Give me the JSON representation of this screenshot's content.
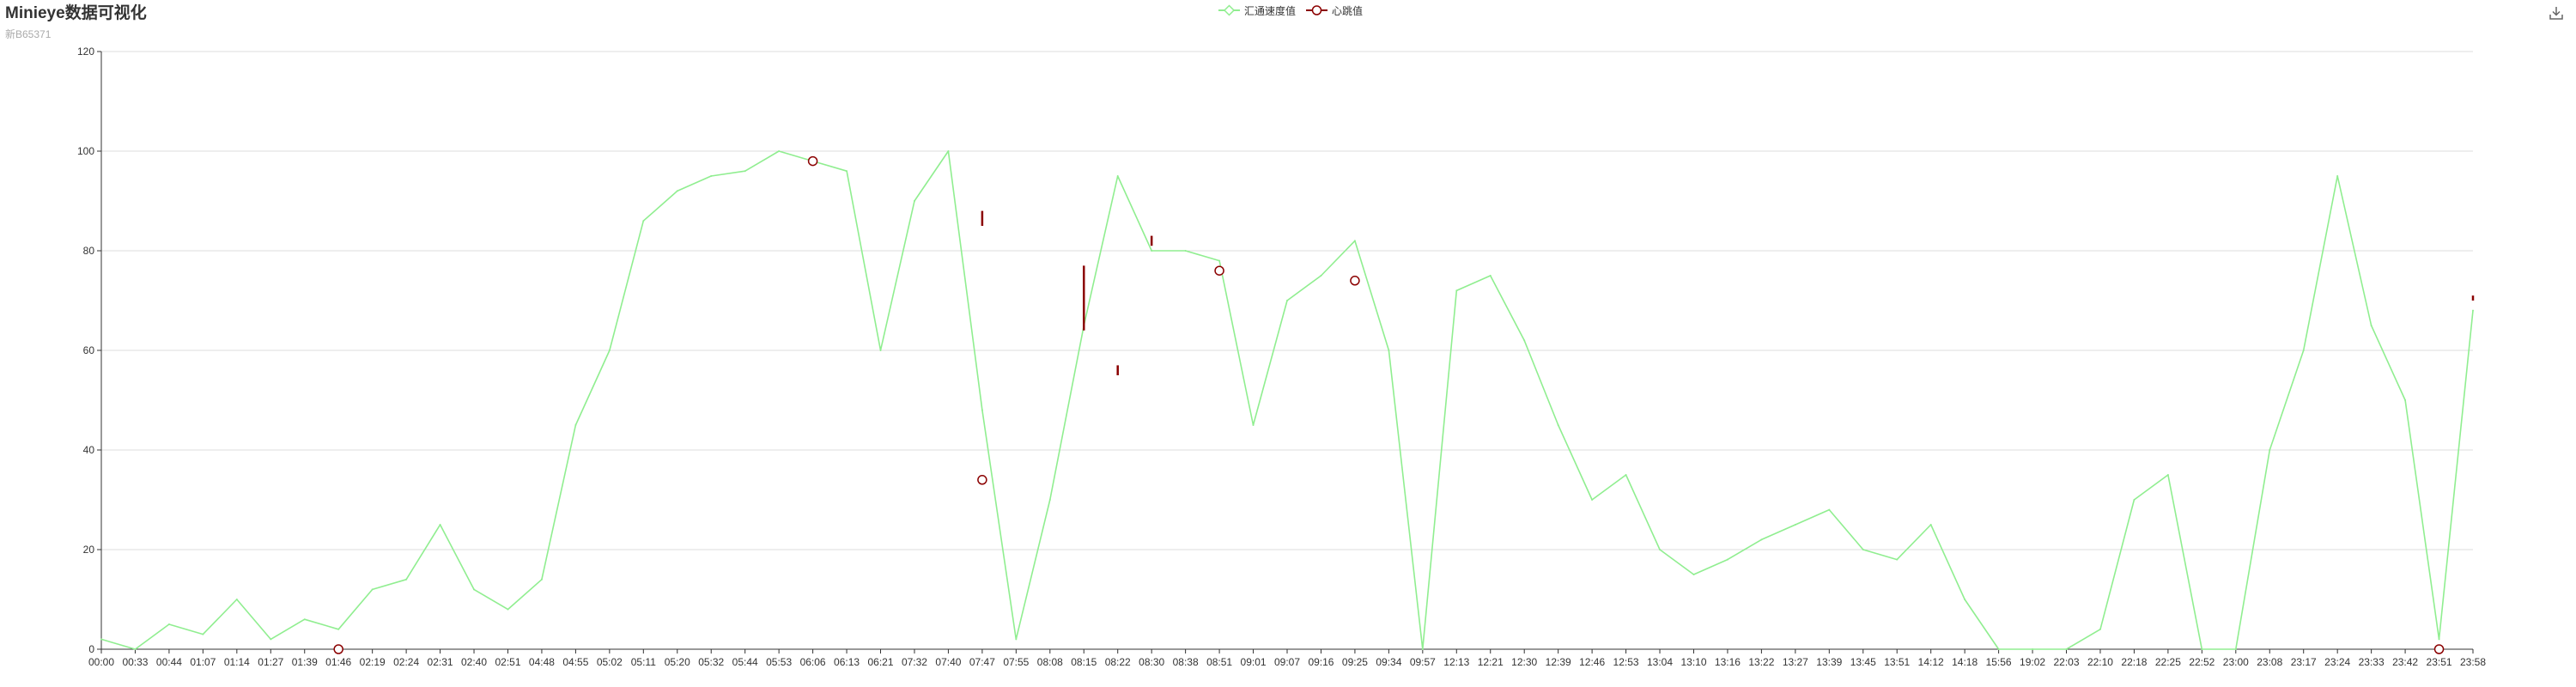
{
  "header": {
    "title": "Minieye数据可视化",
    "subtitle": "新B65371"
  },
  "colors": {
    "speed": "#90ee90",
    "heartbeat": "#8b0000",
    "grid": "#dddddd",
    "axis": "#333333"
  },
  "toolbox": {
    "icon": "download-icon"
  },
  "chart_data": {
    "type": "line",
    "title": "Minieye数据可视化",
    "subtitle": "新B65371",
    "legend": [
      {
        "name": "汇通速度值",
        "symbol": "diamond",
        "color": "#90ee90"
      },
      {
        "name": "心跳值",
        "symbol": "circle",
        "color": "#8b0000"
      }
    ],
    "legend_position": "top-center",
    "grid": true,
    "ylim": [
      0,
      120
    ],
    "yticks": [
      0,
      20,
      40,
      60,
      80,
      100,
      120
    ],
    "x_range": [
      "00:00",
      "23:59"
    ],
    "xticks": [
      "00:00",
      "00:33",
      "00:44",
      "01:07",
      "01:14",
      "01:27",
      "01:39",
      "01:46",
      "02:19",
      "02:24",
      "02:31",
      "02:40",
      "02:51",
      "04:48",
      "04:55",
      "05:02",
      "05:11",
      "05:20",
      "05:32",
      "05:44",
      "05:53",
      "06:06",
      "06:13",
      "06:21",
      "07:32",
      "07:40",
      "07:47",
      "07:55",
      "08:08",
      "08:15",
      "08:22",
      "08:30",
      "08:38",
      "08:51",
      "09:01",
      "09:07",
      "09:16",
      "09:25",
      "09:34",
      "09:57",
      "12:13",
      "12:21",
      "12:30",
      "12:39",
      "12:46",
      "12:53",
      "13:04",
      "13:10",
      "13:16",
      "13:22",
      "13:27",
      "13:39",
      "13:45",
      "13:51",
      "14:12",
      "14:18",
      "15:56",
      "19:02",
      "22:03",
      "22:10",
      "22:18",
      "22:25",
      "22:52",
      "23:00",
      "23:08",
      "23:17",
      "23:24",
      "23:33",
      "23:42",
      "23:51",
      "23:58"
    ],
    "series": [
      {
        "name": "汇通速度值",
        "x_index": [
          0,
          1,
          2,
          3,
          4,
          5,
          6,
          7,
          8,
          9,
          10,
          11,
          12,
          13,
          14,
          15,
          16,
          17,
          18,
          19,
          20,
          21,
          22,
          23,
          24,
          25,
          26,
          27,
          28,
          29,
          30,
          31,
          32,
          33,
          34,
          35,
          36,
          37,
          38,
          39,
          40,
          41,
          42,
          43,
          44,
          45,
          46,
          47,
          48,
          49,
          50,
          51,
          52,
          53,
          54,
          55,
          56,
          57,
          58,
          59,
          60,
          61,
          62,
          63,
          64,
          65,
          66,
          67,
          68,
          69,
          70
        ],
        "values": [
          2,
          0,
          5,
          3,
          10,
          2,
          6,
          4,
          12,
          14,
          25,
          12,
          8,
          14,
          45,
          60,
          86,
          92,
          95,
          96,
          100,
          98,
          96,
          60,
          90,
          100,
          48,
          2,
          30,
          65,
          95,
          80,
          80,
          78,
          45,
          70,
          75,
          82,
          60,
          0,
          72,
          75,
          62,
          45,
          30,
          35,
          20,
          15,
          18,
          22,
          25,
          28,
          20,
          18,
          25,
          10,
          0,
          0,
          0,
          4,
          30,
          35,
          0,
          0,
          40,
          60,
          95,
          65,
          50,
          2,
          68
        ]
      },
      {
        "name": "心跳值",
        "x_index": [
          7,
          21,
          26,
          33,
          37,
          69
        ],
        "values": [
          0,
          98,
          34,
          76,
          74,
          0
        ]
      }
    ],
    "heartbeat_marks": [
      {
        "x_index": 26,
        "values": [
          88,
          85
        ]
      },
      {
        "x_index": 29,
        "values": [
          77,
          64
        ]
      },
      {
        "x_index": 30,
        "values": [
          57,
          55
        ]
      },
      {
        "x_index": 31,
        "values": [
          83,
          81
        ]
      },
      {
        "x_index": 70,
        "values": [
          71,
          70
        ]
      }
    ]
  }
}
